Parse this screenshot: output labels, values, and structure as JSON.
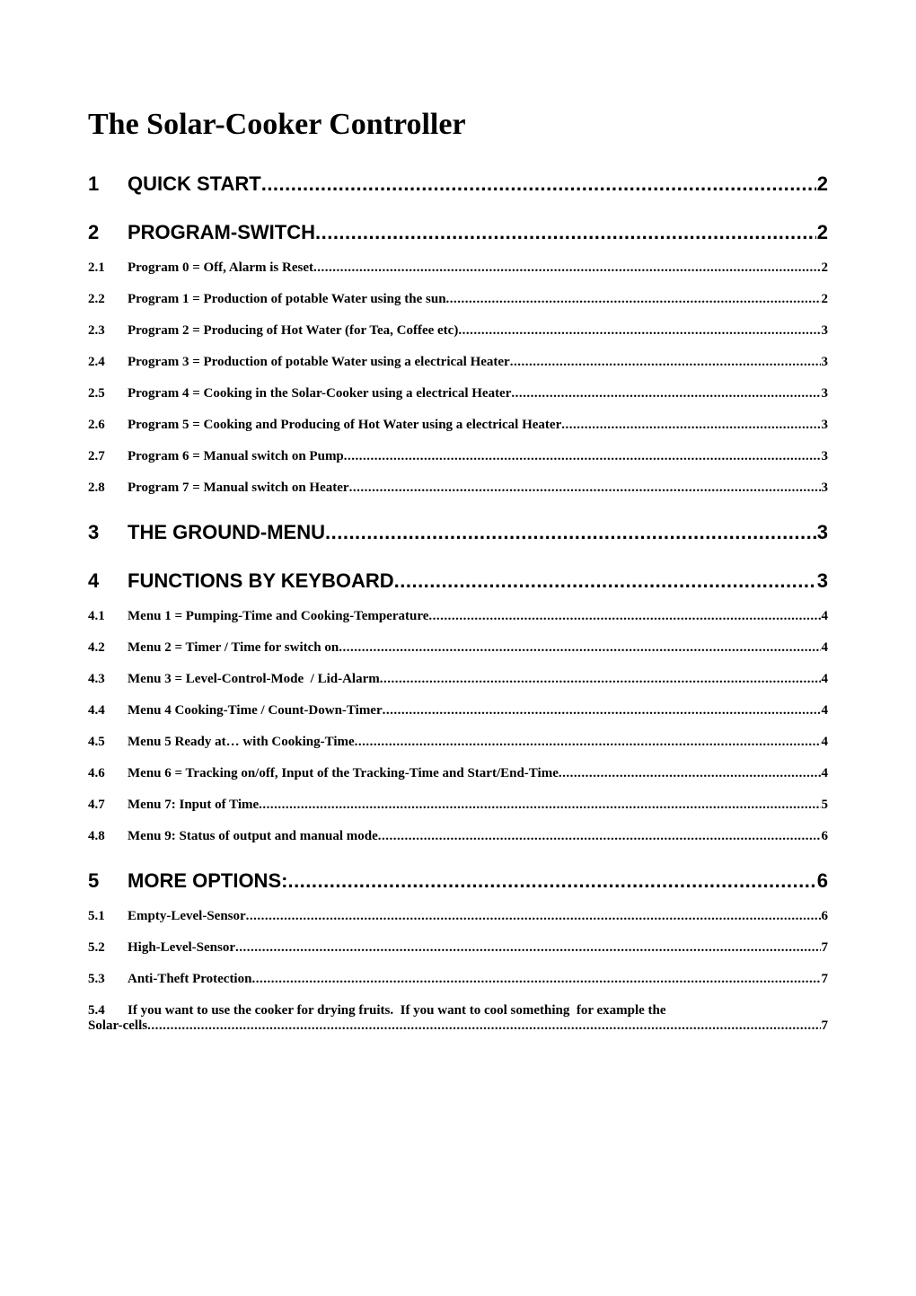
{
  "title": "The Solar-Cooker Controller",
  "toc": [
    {
      "level": 1,
      "num": "1",
      "label": "QUICK START",
      "page": "2"
    },
    {
      "level": 1,
      "num": "2",
      "label": "PROGRAM-SWITCH",
      "page": "2"
    },
    {
      "level": 2,
      "num": "2.1",
      "label": "Program 0 = Off, Alarm is Reset",
      "page": "2"
    },
    {
      "level": 2,
      "num": "2.2",
      "label": "Program 1 = Production of potable Water using the sun",
      "page": "2"
    },
    {
      "level": 2,
      "num": "2.3",
      "label": "Program 2 = Producing of Hot Water (for Tea, Coffee etc)",
      "page": "3"
    },
    {
      "level": 2,
      "num": "2.4",
      "label": "Program 3 = Production of potable Water using a electrical Heater",
      "page": "3"
    },
    {
      "level": 2,
      "num": "2.5",
      "label": "Program 4 = Cooking in the Solar-Cooker using a electrical Heater",
      "page": "3"
    },
    {
      "level": 2,
      "num": "2.6",
      "label": "Program 5 = Cooking and Producing of Hot Water using a electrical Heater",
      "page": "3"
    },
    {
      "level": 2,
      "num": "2.7",
      "label": "Program 6 = Manual switch on Pump",
      "page": "3"
    },
    {
      "level": 2,
      "num": "2.8",
      "label": "Program 7 = Manual switch on Heater",
      "page": "3"
    },
    {
      "level": 1,
      "num": "3",
      "label": "THE GROUND-MENU",
      "page": "3"
    },
    {
      "level": 1,
      "num": "4",
      "label": "FUNCTIONS BY KEYBOARD",
      "page": "3"
    },
    {
      "level": 2,
      "num": "4.1",
      "label": "Menu 1 = Pumping-Time and Cooking-Temperature",
      "page": "4"
    },
    {
      "level": 2,
      "num": "4.2",
      "label": "Menu 2 = Timer / Time for switch on",
      "page": "4"
    },
    {
      "level": 2,
      "num": "4.3",
      "label": "Menu 3 = Level-Control-Mode  / Lid-Alarm",
      "page": "4"
    },
    {
      "level": 2,
      "num": "4.4",
      "label": "Menu 4 Cooking-Time / Count-Down-Timer",
      "page": "4"
    },
    {
      "level": 2,
      "num": "4.5",
      "label": "Menu 5 Ready at… with Cooking-Time",
      "page": "4"
    },
    {
      "level": 2,
      "num": "4.6",
      "label": "Menu 6 = Tracking on/off, Input of the Tracking-Time and Start/End-Time",
      "page": "4"
    },
    {
      "level": 2,
      "num": "4.7",
      "label": "Menu 7: Input of Time",
      "page": "5"
    },
    {
      "level": 2,
      "num": "4.8",
      "label": "Menu 9: Status of output and manual mode",
      "page": "6"
    },
    {
      "level": 1,
      "num": "5",
      "label": "MORE OPTIONS:",
      "page": "6"
    },
    {
      "level": 2,
      "num": "5.1",
      "label": "Empty-Level-Sensor",
      "page": "6"
    },
    {
      "level": 2,
      "num": "5.2",
      "label": "High-Level-Sensor",
      "page": "7"
    },
    {
      "level": 2,
      "num": "5.3",
      "label": "Anti-Theft Protection",
      "page": "7"
    }
  ],
  "continuation": {
    "num": "5.4",
    "top_line": "If you want to use the cooker for drying fruits.  If you want to cool something  for example the",
    "bottom_label": "Solar-cells",
    "page": "7"
  }
}
